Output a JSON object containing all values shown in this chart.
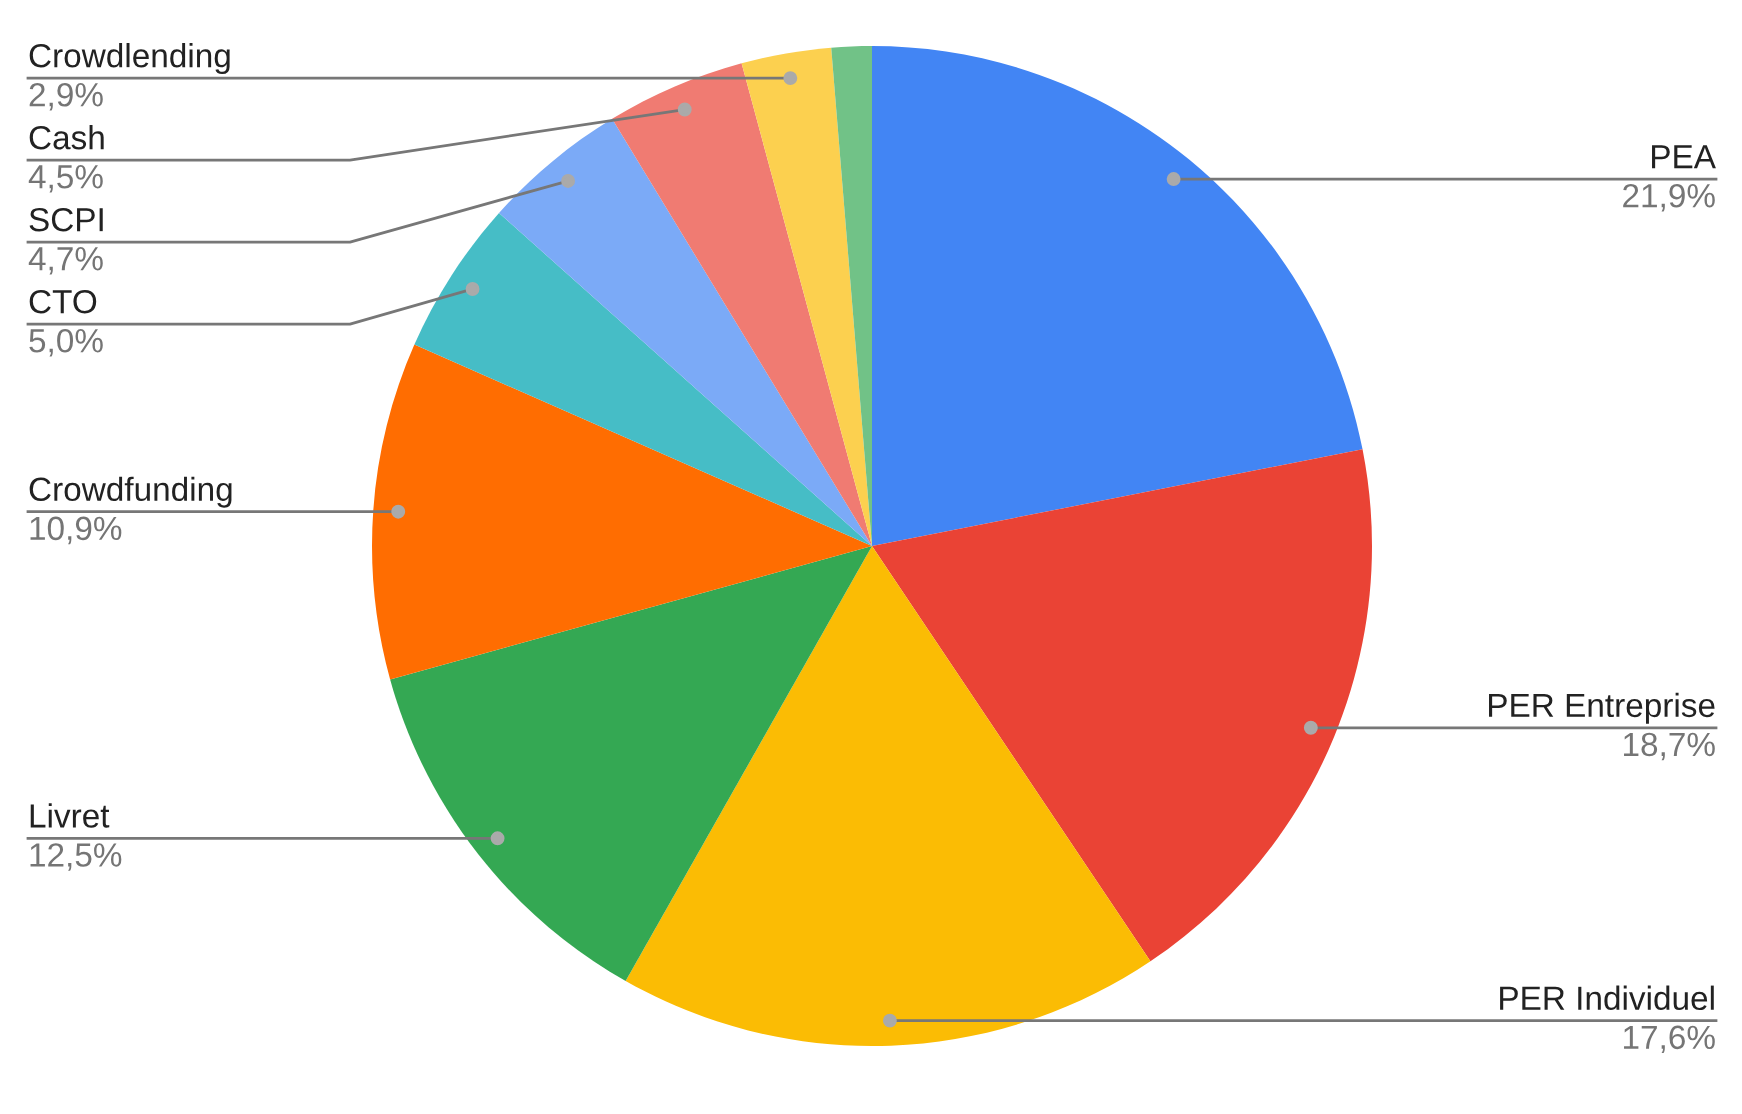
{
  "chart_data": {
    "type": "pie",
    "categories": [
      "PEA",
      "PER Entreprise",
      "PER Individuel",
      "Livret",
      "Crowdfunding",
      "CTO",
      "SCPI",
      "Cash",
      "Crowdlending",
      null
    ],
    "values": [
      21.9,
      18.7,
      17.6,
      12.5,
      10.9,
      5.0,
      4.7,
      4.5,
      2.9,
      1.3
    ],
    "value_labels": [
      "21,9%",
      "18,7%",
      "17,6%",
      "12,5%",
      "10,9%",
      "5,0%",
      "4,7%",
      "4,5%",
      "2,9%",
      null
    ],
    "colors": [
      "#4285f4",
      "#ea4335",
      "#fbbc04",
      "#34a853",
      "#ff6d01",
      "#46bdc6",
      "#7baaf7",
      "#f07b72",
      "#fcd04f",
      "#71c287"
    ],
    "legend": false
  }
}
